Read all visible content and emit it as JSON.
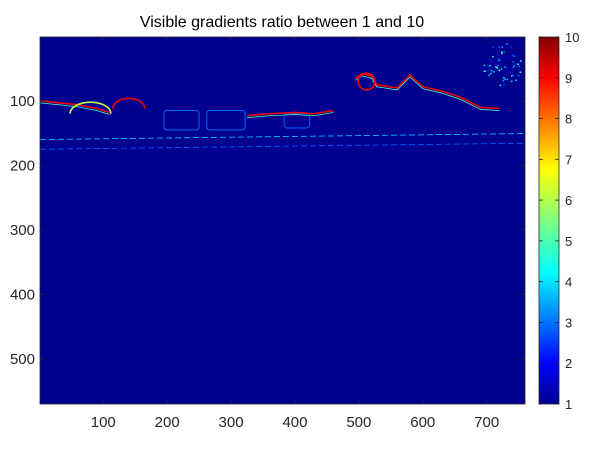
{
  "chart_data": {
    "type": "heatmap",
    "title": "Visible gradients ratio between 1 and 10",
    "xlabel": "",
    "ylabel": "",
    "xlim": [
      1,
      760
    ],
    "ylim": [
      1,
      570
    ],
    "y_reversed": true,
    "x_ticks": [
      100,
      200,
      300,
      400,
      500,
      600,
      700
    ],
    "y_ticks": [
      100,
      200,
      300,
      400,
      500
    ],
    "colorbar": {
      "colormap": "jet",
      "range": [
        1,
        10
      ],
      "ticks": [
        1,
        2,
        3,
        4,
        5,
        6,
        7,
        8,
        9,
        10
      ]
    },
    "background_value": 1,
    "grid": false,
    "features": [
      {
        "kind": "horizon_line",
        "points": [
          [
            1,
            100
          ],
          [
            30,
            103
          ],
          [
            60,
            106
          ],
          [
            90,
            112
          ],
          [
            110,
            118
          ]
        ],
        "value": 9
      },
      {
        "kind": "hill_arc",
        "cx": 140,
        "cy": 112,
        "rx": 25,
        "ry": 16,
        "value": 9
      },
      {
        "kind": "hill_arc",
        "cx": 80,
        "cy": 120,
        "rx": 32,
        "ry": 18,
        "value": 6
      },
      {
        "kind": "vehicle_box",
        "x": 195,
        "y": 115,
        "w": 55,
        "h": 30,
        "value": 3
      },
      {
        "kind": "vehicle_box",
        "x": 262,
        "y": 115,
        "w": 60,
        "h": 30,
        "value": 3
      },
      {
        "kind": "vehicle_box",
        "x": 383,
        "y": 120,
        "w": 40,
        "h": 22,
        "value": 3
      },
      {
        "kind": "horizon_line",
        "points": [
          [
            325,
            123
          ],
          [
            360,
            120
          ],
          [
            400,
            118
          ],
          [
            430,
            120
          ],
          [
            460,
            115
          ]
        ],
        "value": 9
      },
      {
        "kind": "house_outline",
        "points": [
          [
            495,
            65
          ],
          [
            505,
            58
          ],
          [
            520,
            62
          ],
          [
            528,
            75
          ],
          [
            560,
            80
          ],
          [
            580,
            60
          ],
          [
            600,
            78
          ],
          [
            630,
            85
          ],
          [
            660,
            95
          ],
          [
            690,
            110
          ],
          [
            720,
            112
          ]
        ],
        "value": 9
      },
      {
        "kind": "tree_canopy",
        "cx": 725,
        "cy": 45,
        "r": 30,
        "value": 3
      },
      {
        "kind": "circle_outline",
        "cx": 512,
        "cy": 70,
        "r": 13,
        "value": 9
      },
      {
        "kind": "road_band",
        "y": 160,
        "value": 4
      },
      {
        "kind": "road_band",
        "y": 175,
        "value": 3
      }
    ]
  }
}
